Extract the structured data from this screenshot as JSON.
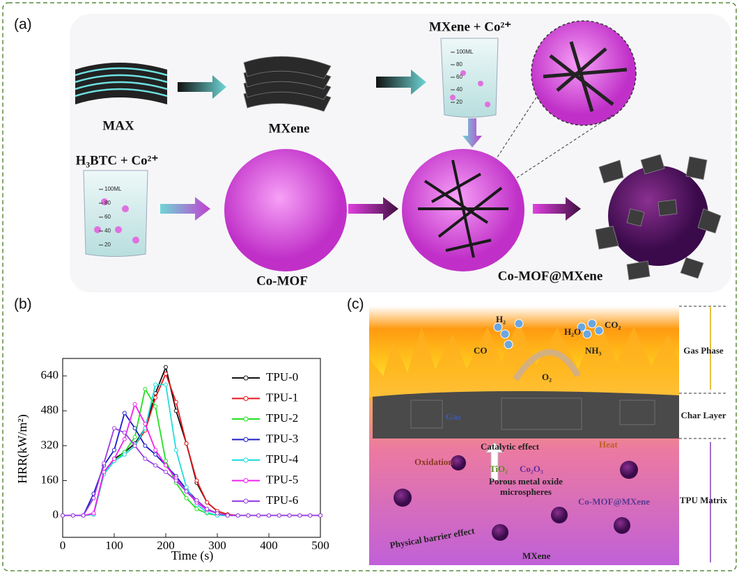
{
  "panel_labels": [
    "(a)",
    "(b)",
    "(c)"
  ],
  "panel_a": {
    "max": "MAX",
    "mxene": "MXene",
    "mxene_co": "MXene + Co²⁺",
    "h3btc_co": "H₃BTC + Co²⁺",
    "co_mof": "Co-MOF",
    "co_mof_mxene": "Co-MOF@MXene",
    "beaker_marks": [
      "100ML",
      "80",
      "60",
      "40",
      "20"
    ]
  },
  "chart_data": {
    "type": "line",
    "y_label": "HRR(kW/m²)",
    "x_label": "Time (s)",
    "x": [
      0,
      20,
      40,
      60,
      80,
      100,
      120,
      140,
      160,
      180,
      200,
      220,
      240,
      260,
      280,
      300,
      320,
      340,
      360,
      380,
      400,
      420,
      440,
      460,
      480,
      500
    ],
    "xlim": [
      0,
      500
    ],
    "xticks": [
      0,
      100,
      200,
      300,
      400,
      500
    ],
    "ylim": [
      -100,
      720
    ],
    "yticks": [
      0,
      160,
      320,
      480,
      640
    ],
    "legend": "upper right",
    "series": [
      {
        "name": "TPU-0",
        "color": "#111111",
        "values": [
          0,
          0,
          0,
          5,
          200,
          260,
          290,
          330,
          400,
          560,
          680,
          480,
          330,
          150,
          60,
          20,
          5,
          0,
          0,
          0,
          0,
          0,
          0,
          0,
          0,
          0
        ]
      },
      {
        "name": "TPU-1",
        "color": "#e8141c",
        "values": [
          0,
          0,
          0,
          5,
          190,
          250,
          280,
          320,
          390,
          540,
          650,
          520,
          330,
          160,
          60,
          20,
          5,
          0,
          0,
          0,
          0,
          0,
          0,
          0,
          0,
          0
        ]
      },
      {
        "name": "TPU-2",
        "color": "#22e022",
        "values": [
          0,
          0,
          0,
          5,
          190,
          250,
          290,
          360,
          580,
          500,
          250,
          150,
          80,
          30,
          10,
          0,
          0,
          0,
          0,
          0,
          0,
          0,
          0,
          0,
          0,
          0
        ]
      },
      {
        "name": "TPU-3",
        "color": "#1c1cc8",
        "values": [
          0,
          0,
          0,
          100,
          230,
          300,
          470,
          400,
          320,
          280,
          230,
          180,
          120,
          70,
          30,
          10,
          0,
          0,
          0,
          0,
          0,
          0,
          0,
          0,
          0,
          0
        ]
      },
      {
        "name": "TPU-4",
        "color": "#20dcdc",
        "values": [
          0,
          0,
          0,
          5,
          190,
          250,
          280,
          320,
          400,
          600,
          600,
          300,
          130,
          50,
          15,
          0,
          0,
          0,
          0,
          0,
          0,
          0,
          0,
          0,
          0,
          0
        ]
      },
      {
        "name": "TPU-5",
        "color": "#f020f0",
        "values": [
          0,
          0,
          0,
          10,
          200,
          260,
          350,
          510,
          420,
          300,
          230,
          170,
          110,
          60,
          25,
          10,
          0,
          0,
          0,
          0,
          0,
          0,
          0,
          0,
          0,
          0
        ]
      },
      {
        "name": "TPU-6",
        "color": "#9a3ce0",
        "values": [
          0,
          0,
          0,
          80,
          240,
          400,
          380,
          320,
          260,
          230,
          200,
          160,
          110,
          70,
          30,
          10,
          0,
          0,
          0,
          0,
          0,
          0,
          0,
          0,
          0,
          0
        ]
      }
    ]
  },
  "panel_c": {
    "h2": "H₂",
    "co": "CO",
    "h2o": "H₂O",
    "co2": "CO₂",
    "nh3": "NH₃",
    "o2": "O₂",
    "gas_phase": "Gas Phase",
    "char_layer": "Char Layer",
    "tpu_matrix": "TPU Matrix",
    "gas": "Gas",
    "heat": "Heat",
    "catalytic": "Catalytic effect",
    "tio2": "TiO₂",
    "co2o3": "Co₂O₃",
    "oxidation": "Oxidation",
    "porous": "Porous metal oxide",
    "microspheres": "microspheres",
    "co_mof_mxene": "Co-MOF@MXene",
    "barrier": "Physical barrier effect",
    "mxene": "MXene"
  }
}
